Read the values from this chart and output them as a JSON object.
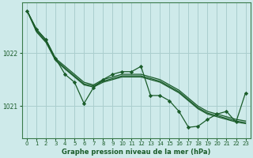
{
  "background_color": "#ceeaea",
  "grid_color": "#aacece",
  "line_color": "#1a5c2a",
  "xlabel": "Graphe pression niveau de la mer (hPa)",
  "xlim": [
    -0.5,
    23.5
  ],
  "ylim": [
    1020.4,
    1022.95
  ],
  "yticks": [
    1021,
    1022
  ],
  "xticks": [
    0,
    1,
    2,
    3,
    4,
    5,
    6,
    7,
    8,
    9,
    10,
    11,
    12,
    13,
    14,
    15,
    16,
    17,
    18,
    19,
    20,
    21,
    22,
    23
  ],
  "smooth1": [
    1022.8,
    1022.45,
    1022.25,
    1021.9,
    1021.75,
    1021.6,
    1021.45,
    1021.4,
    1021.5,
    1021.55,
    1021.6,
    1021.6,
    1021.6,
    1021.55,
    1021.5,
    1021.4,
    1021.3,
    1021.15,
    1021.0,
    1020.9,
    1020.85,
    1020.8,
    1020.75,
    1020.72
  ],
  "smooth2": [
    1022.8,
    1022.42,
    1022.22,
    1021.88,
    1021.72,
    1021.57,
    1021.42,
    1021.38,
    1021.47,
    1021.52,
    1021.57,
    1021.57,
    1021.57,
    1021.52,
    1021.47,
    1021.37,
    1021.27,
    1021.12,
    1020.97,
    1020.87,
    1020.82,
    1020.77,
    1020.72,
    1020.69
  ],
  "smooth3": [
    1022.8,
    1022.4,
    1022.2,
    1021.86,
    1021.7,
    1021.55,
    1021.4,
    1021.36,
    1021.45,
    1021.5,
    1021.55,
    1021.55,
    1021.55,
    1021.5,
    1021.45,
    1021.35,
    1021.25,
    1021.1,
    1020.95,
    1020.85,
    1020.8,
    1020.75,
    1020.7,
    1020.67
  ],
  "zigzag": [
    1022.8,
    1022.45,
    1022.25,
    1021.9,
    1021.6,
    1021.45,
    1021.05,
    1021.35,
    1021.5,
    1021.6,
    1021.65,
    1021.65,
    1021.75,
    1021.2,
    1021.2,
    1021.1,
    1020.9,
    1020.6,
    1020.62,
    1020.75,
    1020.85,
    1020.9,
    1020.7,
    1021.25
  ]
}
